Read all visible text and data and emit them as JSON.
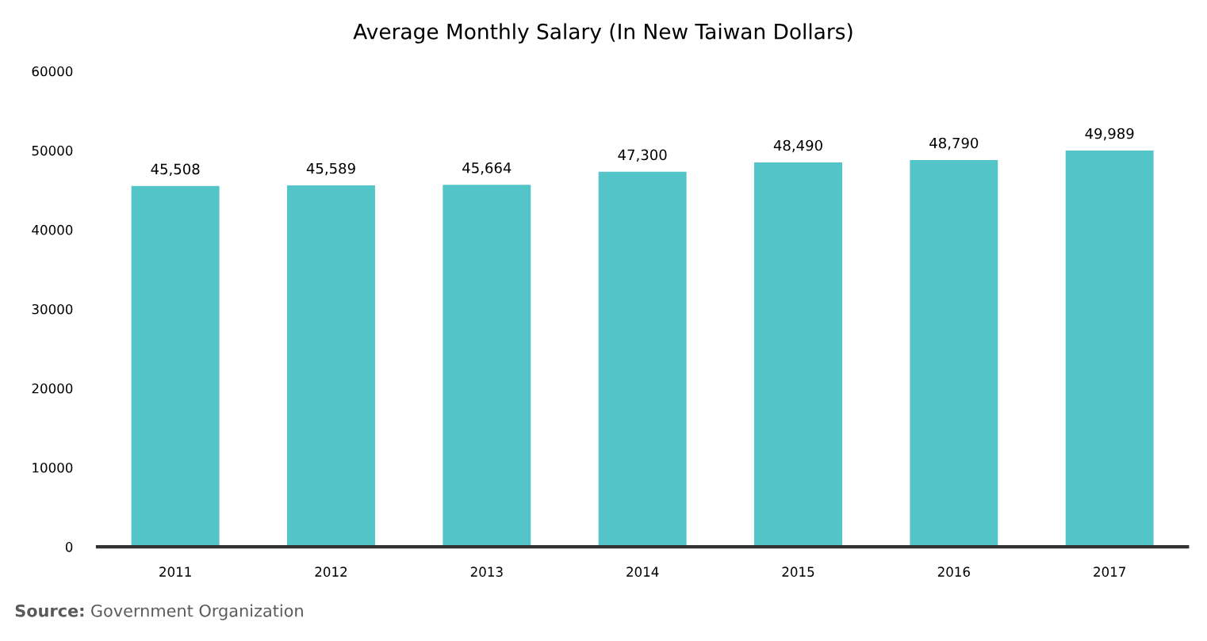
{
  "chart_data": {
    "type": "bar",
    "title": "Average Monthly Salary (In New Taiwan Dollars)",
    "categories": [
      "2011",
      "2012",
      "2013",
      "2014",
      "2015",
      "2016",
      "2017"
    ],
    "values": [
      45508,
      45589,
      45664,
      47300,
      48490,
      48790,
      49989
    ],
    "value_labels": [
      "45,508",
      "45,589",
      "45,664",
      "47,300",
      "48,490",
      "48,790",
      "49,989"
    ],
    "color": "#53c4c7",
    "ylim": [
      0,
      60000
    ],
    "yticks": [
      0,
      10000,
      20000,
      30000,
      40000,
      50000,
      60000
    ],
    "grid": false,
    "legend": false,
    "annotations": [
      "Source: Government Organization"
    ]
  }
}
